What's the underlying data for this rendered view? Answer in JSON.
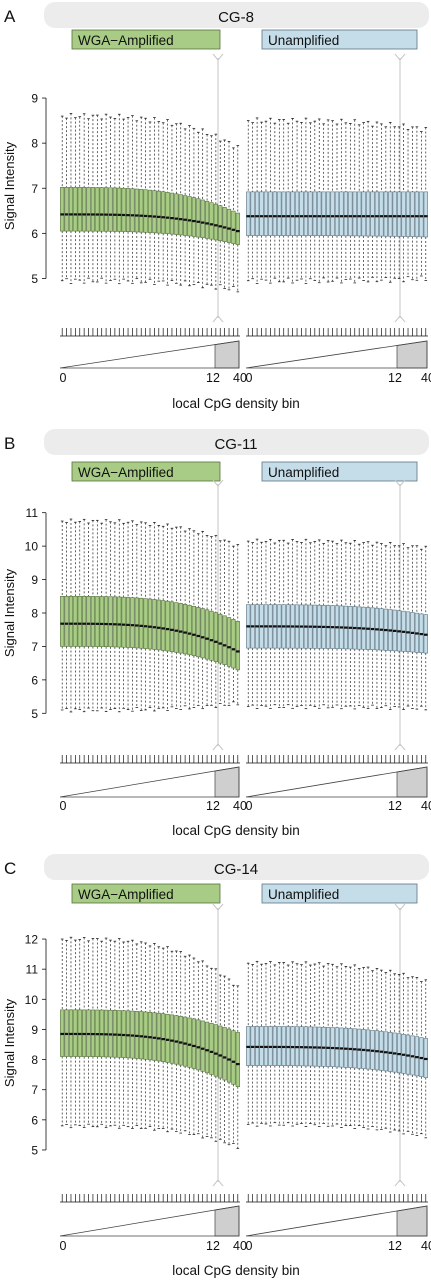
{
  "colors": {
    "amplified": "#a8cc85",
    "amplified_stroke": "#56703f",
    "unamplified": "#c5dde9",
    "unamplified_stroke": "#5e7482",
    "header_bg": "#ececec",
    "median": "#111111",
    "marker": "#c6c6c6",
    "triangle_fill": "#cfcfcf"
  },
  "chart_data": [
    {
      "type": "boxplot",
      "panel_label": "A",
      "title": "CG-8",
      "ylabel": "Signal Intensity",
      "xlabel": "local CpG density bin",
      "ylim": [
        4.7,
        9.4
      ],
      "yticks": [
        "5",
        "6",
        "7",
        "8",
        "9"
      ],
      "bins": 41,
      "x_tick_labels": [
        "0",
        "12",
        "40"
      ],
      "legend": [
        "WGA−Amplified",
        "Unamplified"
      ],
      "series": [
        {
          "name": "WGA−Amplified",
          "q1_start": 6.05,
          "q1_end": 5.75,
          "median_start": 6.42,
          "median_end": 6.05,
          "q3_start": 7.02,
          "q3_end": 6.45,
          "lower_start": 4.95,
          "lower_end": 4.75,
          "upper_start": 8.6,
          "upper_end": 7.9
        },
        {
          "name": "Unamplified",
          "q1_start": 5.95,
          "q1_end": 5.92,
          "median_start": 6.38,
          "median_end": 6.38,
          "q3_start": 6.92,
          "q3_end": 6.92,
          "lower_start": 4.95,
          "lower_end": 5.0,
          "upper_start": 8.5,
          "upper_end": 8.3
        }
      ]
    },
    {
      "type": "boxplot",
      "panel_label": "B",
      "title": "CG-11",
      "ylabel": "Signal Intensity",
      "xlabel": "local CpG density bin",
      "ylim": [
        4.8,
        11.2
      ],
      "yticks": [
        "5",
        "6",
        "7",
        "8",
        "9",
        "10",
        "11"
      ],
      "bins": 41,
      "x_tick_labels": [
        "0",
        "12",
        "40"
      ],
      "legend": [
        "WGA−Amplified",
        "Unamplified"
      ],
      "series": [
        {
          "name": "WGA−Amplified",
          "q1_start": 7.0,
          "q1_end": 6.3,
          "median_start": 7.68,
          "median_end": 6.85,
          "q3_start": 8.5,
          "q3_end": 7.75,
          "lower_start": 5.1,
          "lower_end": 5.3,
          "upper_start": 10.75,
          "upper_end": 10.0
        },
        {
          "name": "Unamplified",
          "q1_start": 6.95,
          "q1_end": 6.8,
          "median_start": 7.6,
          "median_end": 7.35,
          "q3_start": 8.25,
          "q3_end": 7.95,
          "lower_start": 5.2,
          "lower_end": 5.15,
          "upper_start": 10.15,
          "upper_end": 9.95
        }
      ]
    },
    {
      "type": "boxplot",
      "panel_label": "C",
      "title": "CG-14",
      "ylabel": "Signal Intensity",
      "xlabel": "local CpG density bin",
      "ylim": [
        4.8,
        12.3
      ],
      "yticks": [
        "5",
        "6",
        "7",
        "8",
        "9",
        "10",
        "11",
        "12"
      ],
      "bins": 41,
      "x_tick_labels": [
        "0",
        "12",
        "40"
      ],
      "legend": [
        "WGA−Amplified",
        "Unamplified"
      ],
      "series": [
        {
          "name": "WGA−Amplified",
          "q1_start": 8.1,
          "q1_end": 7.1,
          "median_start": 8.85,
          "median_end": 7.85,
          "q3_start": 9.65,
          "q3_end": 8.9,
          "lower_start": 5.8,
          "lower_end": 5.1,
          "upper_start": 12.0,
          "upper_end": 10.4
        },
        {
          "name": "Unamplified",
          "q1_start": 7.8,
          "q1_end": 7.4,
          "median_start": 8.42,
          "median_end": 8.02,
          "q3_start": 9.1,
          "q3_end": 8.7,
          "lower_start": 5.85,
          "lower_end": 5.45,
          "upper_start": 11.2,
          "upper_end": 10.6
        }
      ]
    }
  ]
}
